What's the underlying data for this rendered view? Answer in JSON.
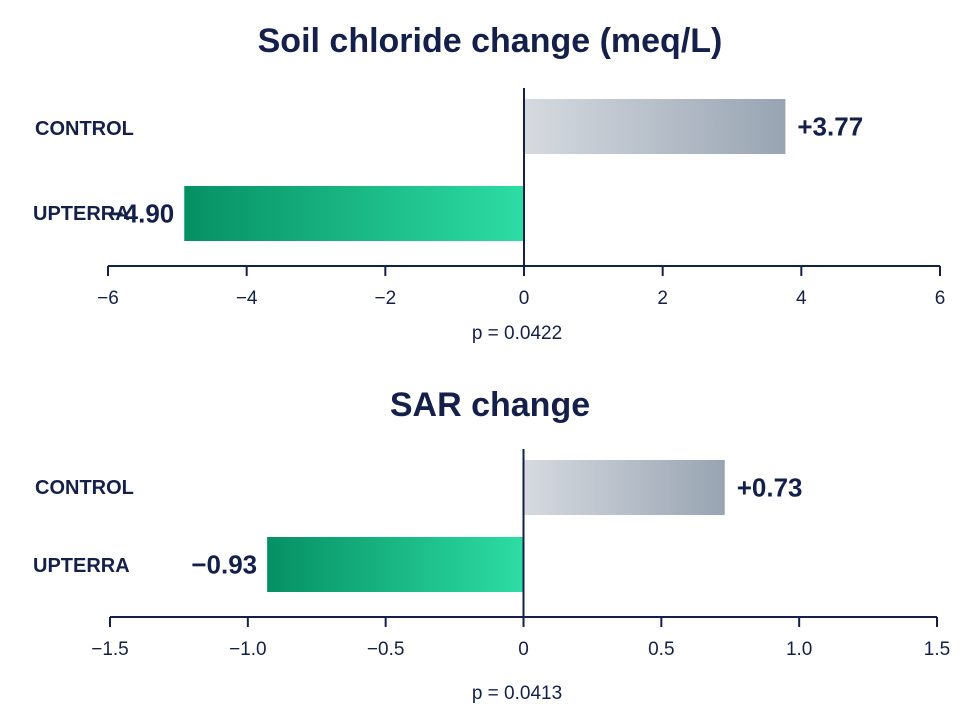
{
  "chart_data": [
    {
      "type": "bar",
      "orientation": "horizontal",
      "title": "Soil chloride change (meq/L)",
      "categories": [
        "CONTROL",
        "UPTERRA"
      ],
      "values": [
        3.77,
        -4.9
      ],
      "value_labels": [
        "+3.77",
        "−4.90"
      ],
      "xlim": [
        -6,
        6
      ],
      "ticks": [
        -6,
        -4,
        -2,
        0,
        2,
        4,
        6
      ],
      "tick_labels": [
        "−6",
        "−4",
        "−2",
        "0",
        "2",
        "4",
        "6"
      ],
      "annotation": "p = 0.0422",
      "grid": false
    },
    {
      "type": "bar",
      "orientation": "horizontal",
      "title": "SAR change",
      "categories": [
        "CONTROL",
        "UPTERRA"
      ],
      "values": [
        0.73,
        -0.93
      ],
      "value_labels": [
        "+0.73",
        "−0.93"
      ],
      "xlim": [
        -1.5,
        1.5
      ],
      "ticks": [
        -1.5,
        -1.0,
        -0.5,
        0,
        0.5,
        1.0,
        1.5
      ],
      "tick_labels": [
        "−1.5",
        "−1.0",
        "−0.5",
        "0",
        "0.5",
        "1.0",
        "1.5"
      ],
      "annotation": "p = 0.0413",
      "grid": false
    }
  ],
  "colors": {
    "control_start": "#d6dae0",
    "control_end": "#98a4b2",
    "upterra_start": "#069063",
    "upterra_end": "#2ddda3",
    "ink": "#14204a"
  }
}
